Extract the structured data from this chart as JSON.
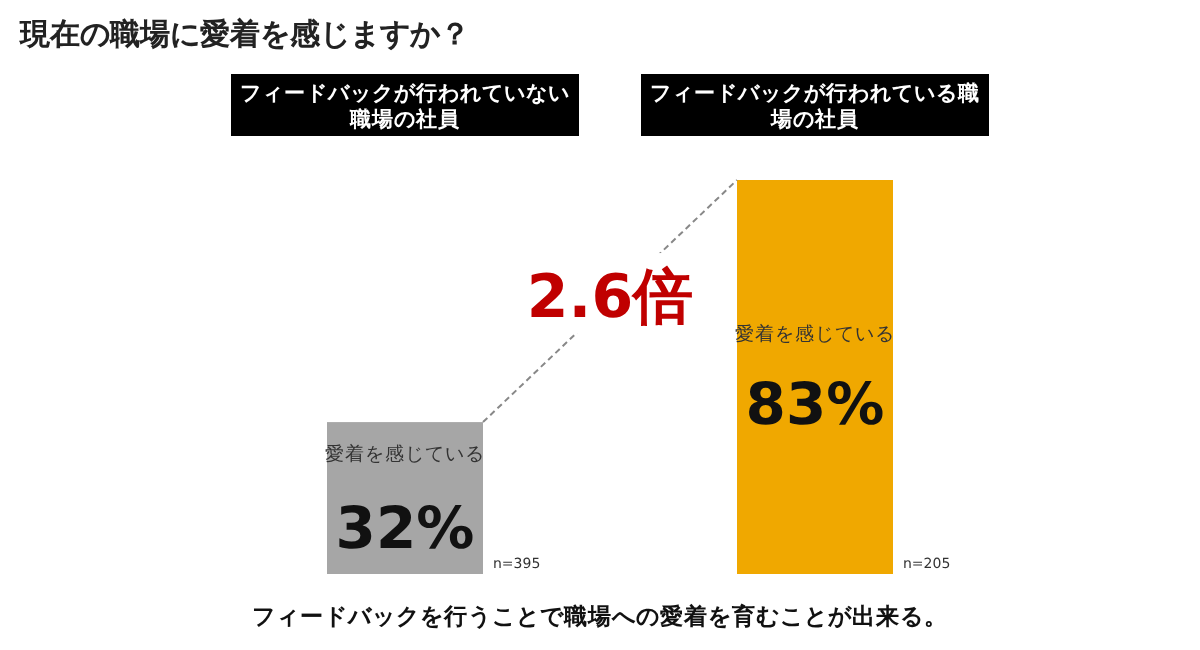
{
  "chart_data": {
    "type": "bar",
    "title": "現在の職場に愛着を感じますか？",
    "categories": [
      "フィードバックが行われていない職場の社員",
      "フィードバックが行われている職場の社員"
    ],
    "values": [
      32,
      83
    ],
    "colors": [
      "#a6a6a6",
      "#f0a800"
    ],
    "value_labels": [
      "32%",
      "83%"
    ],
    "annotations": [
      "愛着を感じている",
      "愛着を感じている",
      "n=395",
      "n=205",
      "2.6倍",
      "フィードバックを行うことで職場への愛着を育むことが出来る。"
    ],
    "legend": false
  }
}
